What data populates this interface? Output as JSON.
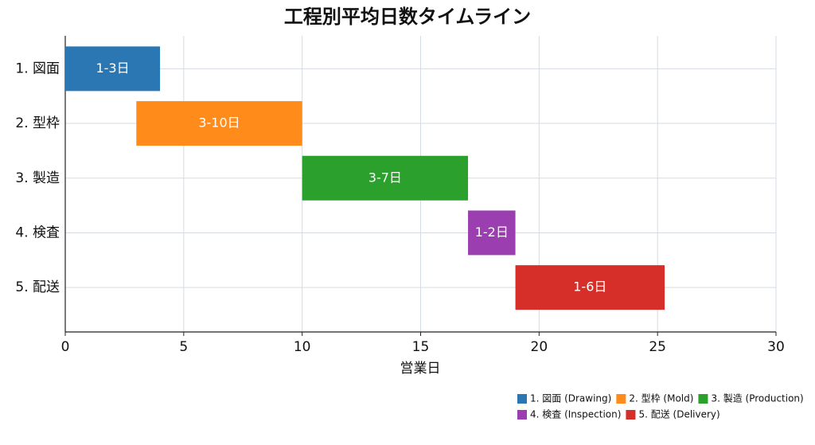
{
  "chart_data": {
    "type": "gantt",
    "title": "工程別平均日数タイムライン",
    "categories": [
      "1. 図面",
      "2. 型枠",
      "3. 製造",
      "4. 検査",
      "5. 配送"
    ],
    "starts": [
      0,
      3,
      10,
      17,
      19
    ],
    "ends": [
      4,
      10,
      17,
      19,
      25.3
    ],
    "bar_labels": [
      "1-3日",
      "3-10日",
      "3-7日",
      "1-2日",
      "1-6日"
    ],
    "colors": [
      "#2a77b4",
      "#ff8c1a",
      "#2ca02c",
      "#9b3fb0",
      "#d62f2a"
    ],
    "legend": [
      "1. 図面 (Drawing)",
      "2. 型枠 (Mold)",
      "3. 製造 (Production)",
      "4. 検査 (Inspection)",
      "5. 配送 (Delivery)"
    ],
    "xlabel": "営業日",
    "xlim": [
      0,
      30
    ],
    "xticks": [
      0,
      5,
      10,
      15,
      20,
      25,
      30
    ],
    "grid": true,
    "legend_position": "lower right"
  }
}
